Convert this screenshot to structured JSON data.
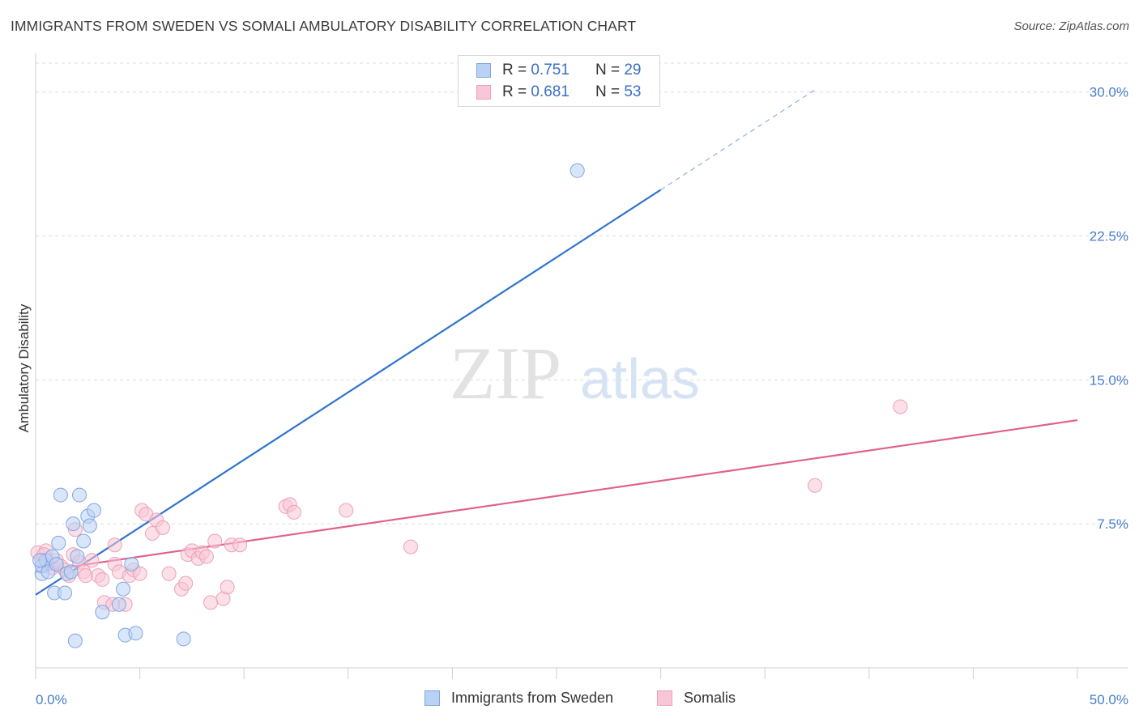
{
  "title": "IMMIGRANTS FROM SWEDEN VS SOMALI AMBULATORY DISABILITY CORRELATION CHART",
  "source": "Source: ZipAtlas.com",
  "watermark": {
    "zip": "ZIP",
    "atlas": "atlas"
  },
  "legend": [
    {
      "r_label": "R =",
      "r_value": "0.751",
      "n_label": "N =",
      "n_value": "29"
    },
    {
      "r_label": "R =",
      "r_value": "0.681",
      "n_label": "N =",
      "n_value": "53"
    }
  ],
  "chart_data": {
    "type": "scatter",
    "title": "IMMIGRANTS FROM SWEDEN VS SOMALI AMBULATORY DISABILITY CORRELATION CHART",
    "xlabel": "",
    "ylabel": "Ambulatory Disability",
    "xlim": [
      0,
      50
    ],
    "ylim": [
      0,
      31.5
    ],
    "x_tick_labels": [
      "0.0%",
      "50.0%"
    ],
    "y_ticks": [
      7.5,
      15.0,
      22.5,
      30.0
    ],
    "y_tick_labels": [
      "7.5%",
      "15.0%",
      "22.5%",
      "30.0%"
    ],
    "grid": true,
    "legend_position": "top-center",
    "series": [
      {
        "name": "Immigrants from Sweden",
        "color": "#8ab4ef",
        "line_color": "#2f73cf",
        "r": 0.751,
        "n": 29,
        "trend": {
          "x0": 0,
          "y0": 3.8,
          "x1": 30,
          "y1": 24.9,
          "dashed_to_x": 37.5
        },
        "points": [
          [
            0.3,
            4.9
          ],
          [
            0.3,
            5.3
          ],
          [
            0.5,
            5.6
          ],
          [
            0.6,
            5.0
          ],
          [
            0.8,
            5.8
          ],
          [
            0.9,
            3.9
          ],
          [
            1.0,
            5.4
          ],
          [
            1.1,
            6.5
          ],
          [
            1.2,
            9.0
          ],
          [
            1.4,
            3.9
          ],
          [
            1.5,
            4.9
          ],
          [
            1.7,
            5.0
          ],
          [
            1.8,
            7.5
          ],
          [
            2.1,
            9.0
          ],
          [
            2.0,
            5.8
          ],
          [
            2.3,
            6.6
          ],
          [
            2.5,
            7.9
          ],
          [
            2.6,
            7.4
          ],
          [
            2.8,
            8.2
          ],
          [
            3.2,
            2.9
          ],
          [
            1.9,
            1.4
          ],
          [
            4.0,
            3.3
          ],
          [
            4.2,
            4.1
          ],
          [
            4.3,
            1.7
          ],
          [
            4.6,
            5.4
          ],
          [
            4.8,
            1.8
          ],
          [
            7.1,
            1.5
          ],
          [
            26.0,
            25.9
          ],
          [
            0.2,
            5.6
          ]
        ]
      },
      {
        "name": "Somalis",
        "color": "#f5a9c1",
        "line_color": "#e0608c",
        "r": 0.681,
        "n": 53,
        "trend": {
          "x0": 0,
          "y0": 5.0,
          "x1": 50,
          "y1": 12.9
        },
        "points": [
          [
            0.1,
            6.0
          ],
          [
            0.3,
            5.6
          ],
          [
            0.5,
            6.1
          ],
          [
            0.6,
            5.4
          ],
          [
            0.8,
            5.2
          ],
          [
            1.0,
            5.6
          ],
          [
            1.2,
            5.3
          ],
          [
            1.4,
            5.1
          ],
          [
            1.6,
            4.8
          ],
          [
            1.8,
            5.9
          ],
          [
            1.9,
            7.2
          ],
          [
            2.1,
            5.5
          ],
          [
            2.3,
            5.0
          ],
          [
            2.4,
            4.8
          ],
          [
            2.7,
            5.6
          ],
          [
            3.0,
            4.8
          ],
          [
            3.2,
            4.6
          ],
          [
            3.3,
            3.4
          ],
          [
            3.7,
            3.3
          ],
          [
            3.8,
            6.4
          ],
          [
            3.8,
            5.4
          ],
          [
            4.0,
            5.0
          ],
          [
            4.3,
            3.3
          ],
          [
            4.5,
            4.8
          ],
          [
            4.7,
            5.1
          ],
          [
            5.0,
            4.9
          ],
          [
            5.1,
            8.2
          ],
          [
            5.3,
            8.0
          ],
          [
            5.6,
            7.0
          ],
          [
            5.8,
            7.7
          ],
          [
            6.1,
            7.3
          ],
          [
            6.4,
            4.9
          ],
          [
            7.0,
            4.1
          ],
          [
            7.2,
            4.4
          ],
          [
            7.3,
            5.9
          ],
          [
            7.5,
            6.1
          ],
          [
            7.8,
            5.7
          ],
          [
            8.0,
            6.0
          ],
          [
            8.2,
            5.8
          ],
          [
            8.4,
            3.4
          ],
          [
            8.6,
            6.6
          ],
          [
            9.0,
            3.6
          ],
          [
            9.2,
            4.2
          ],
          [
            9.4,
            6.4
          ],
          [
            9.8,
            6.4
          ],
          [
            12.0,
            8.4
          ],
          [
            12.2,
            8.5
          ],
          [
            12.4,
            8.1
          ],
          [
            14.9,
            8.2
          ],
          [
            18.0,
            6.3
          ],
          [
            37.4,
            9.5
          ],
          [
            41.5,
            13.6
          ],
          [
            0.4,
            5.9
          ]
        ]
      }
    ]
  },
  "bottom_legend": [
    {
      "label": "Immigrants from Sweden"
    },
    {
      "label": "Somalis"
    }
  ],
  "colors": {
    "blue_fill": "#b9d1f5",
    "blue_stroke": "#7ea6e0",
    "blue_line": "#2f73cf",
    "pink_fill": "#f8c6d6",
    "pink_stroke": "#eea0b9",
    "pink_line": "#e0608c",
    "axis_text": "#4a7cc8",
    "grid": "#dcdcdc"
  }
}
